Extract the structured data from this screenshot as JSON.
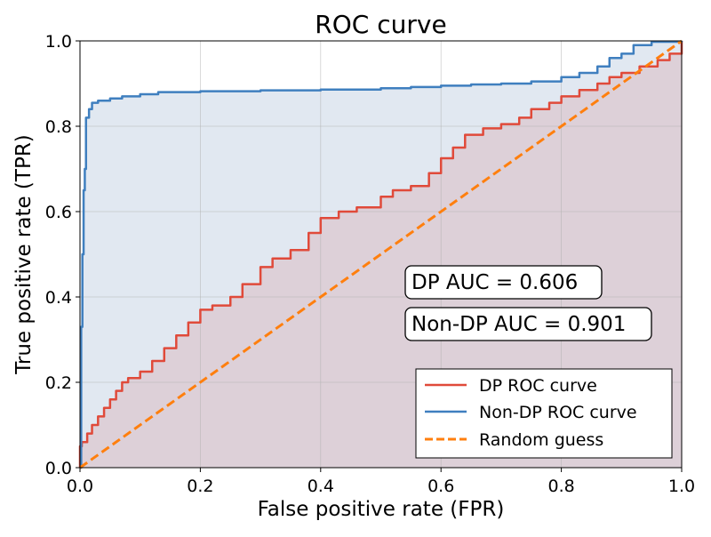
{
  "colors": {
    "dp": "#e04a3a",
    "non_dp": "#3f7fbf",
    "random": "#ff7f0e",
    "dp_fill": "#ddd0d8",
    "non_dp_fill": "#e1e8f1",
    "grid": "#b0b0b0"
  },
  "chart_data": {
    "type": "line",
    "title": "ROC curve",
    "xlabel": "False positive rate (FPR)",
    "ylabel": "True positive rate (TPR)",
    "xlim": [
      0,
      1
    ],
    "ylim": [
      0,
      1
    ],
    "xticks": [
      "0.0",
      "0.2",
      "0.4",
      "0.6",
      "0.8",
      "1.0"
    ],
    "yticks": [
      "0.0",
      "0.2",
      "0.4",
      "0.6",
      "0.8",
      "1.0"
    ],
    "grid": true,
    "legend_position": "lower-right",
    "annotations": [
      "DP AUC = 0.606",
      "Non-DP AUC = 0.901"
    ],
    "series": [
      {
        "name": "DP ROC curve",
        "style": "solid",
        "x": [
          0.0,
          0.0,
          0.003,
          0.012,
          0.02,
          0.03,
          0.04,
          0.05,
          0.06,
          0.07,
          0.08,
          0.1,
          0.12,
          0.14,
          0.16,
          0.18,
          0.2,
          0.22,
          0.25,
          0.27,
          0.3,
          0.32,
          0.35,
          0.38,
          0.4,
          0.43,
          0.46,
          0.5,
          0.52,
          0.55,
          0.58,
          0.6,
          0.62,
          0.64,
          0.67,
          0.7,
          0.73,
          0.75,
          0.78,
          0.8,
          0.83,
          0.86,
          0.88,
          0.9,
          0.93,
          0.96,
          0.98,
          1.0
        ],
        "y": [
          0.0,
          0.05,
          0.06,
          0.08,
          0.1,
          0.12,
          0.14,
          0.16,
          0.18,
          0.2,
          0.21,
          0.225,
          0.25,
          0.28,
          0.31,
          0.34,
          0.37,
          0.38,
          0.4,
          0.43,
          0.47,
          0.49,
          0.51,
          0.55,
          0.585,
          0.6,
          0.61,
          0.635,
          0.65,
          0.66,
          0.69,
          0.725,
          0.75,
          0.78,
          0.795,
          0.805,
          0.82,
          0.84,
          0.855,
          0.87,
          0.885,
          0.9,
          0.915,
          0.925,
          0.94,
          0.955,
          0.97,
          1.0
        ]
      },
      {
        "name": "Non-DP ROC curve",
        "style": "solid",
        "x": [
          0.0,
          0.002,
          0.004,
          0.006,
          0.008,
          0.01,
          0.015,
          0.02,
          0.03,
          0.05,
          0.07,
          0.1,
          0.13,
          0.2,
          0.3,
          0.4,
          0.5,
          0.55,
          0.6,
          0.65,
          0.7,
          0.75,
          0.8,
          0.83,
          0.86,
          0.88,
          0.9,
          0.92,
          0.95,
          1.0
        ],
        "y": [
          0.0,
          0.33,
          0.5,
          0.65,
          0.7,
          0.82,
          0.84,
          0.855,
          0.86,
          0.865,
          0.87,
          0.875,
          0.88,
          0.882,
          0.884,
          0.886,
          0.889,
          0.892,
          0.895,
          0.898,
          0.9,
          0.905,
          0.915,
          0.925,
          0.94,
          0.96,
          0.97,
          0.99,
          0.998,
          1.0
        ]
      },
      {
        "name": "Random guess",
        "style": "dashed",
        "x": [
          0.0,
          1.0
        ],
        "y": [
          0.0,
          1.0
        ]
      }
    ]
  }
}
